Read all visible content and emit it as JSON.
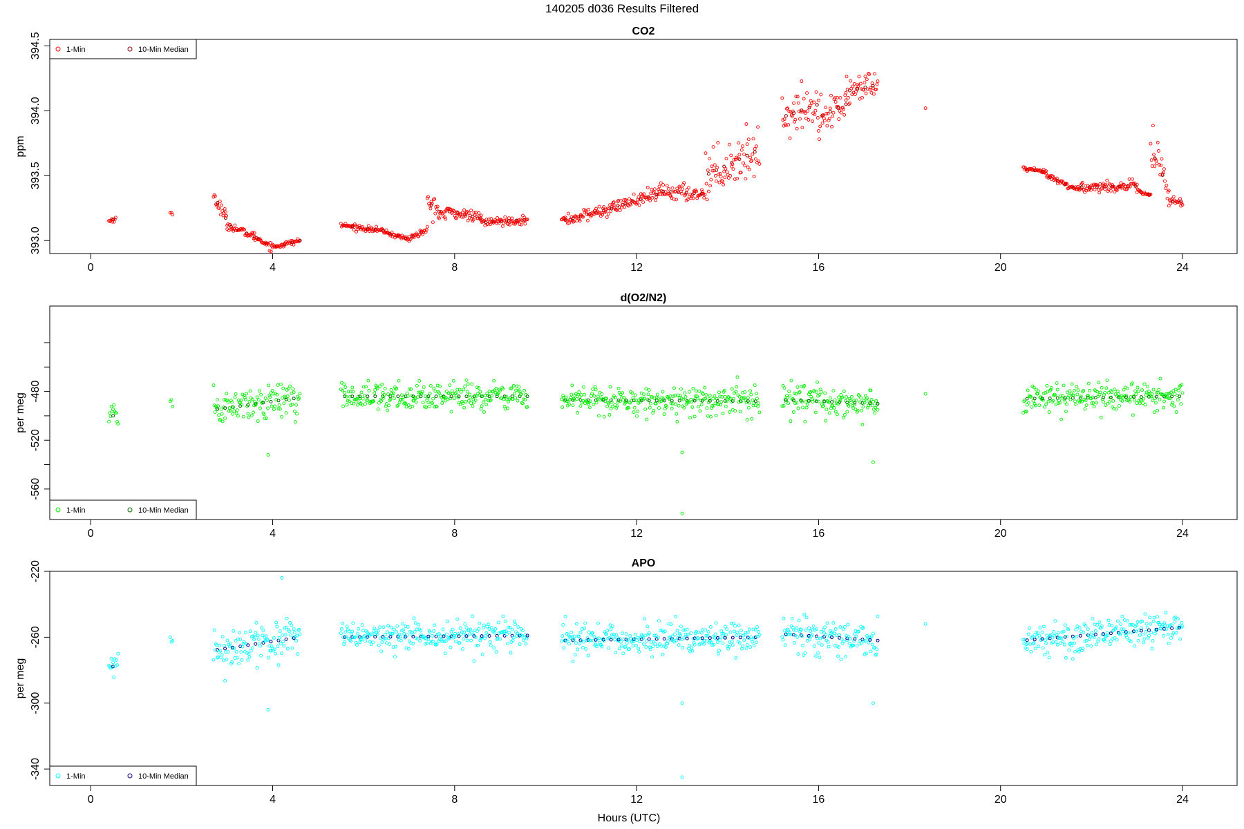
{
  "figure_title": "140205   d036   Results Filtered",
  "xlabel": "Hours (UTC)",
  "chart_data": [
    {
      "type": "scatter",
      "title": "CO2",
      "ylabel": "ppm",
      "xlim": [
        -0.9,
        25.2
      ],
      "ylim": [
        392.9,
        394.55
      ],
      "xticks": [
        0,
        4,
        8,
        12,
        16,
        20,
        24
      ],
      "yticks": [
        393.0,
        393.5,
        394.0,
        394.5
      ],
      "ytick_labels": [
        "393.0",
        "393.5",
        "394.0",
        "394.5"
      ],
      "legend": [
        {
          "label": "1-Min",
          "color": "#ff0000"
        },
        {
          "label": "10-Min Median",
          "color": "#8b0000"
        }
      ],
      "legend_position": "top-left",
      "segments": [
        {
          "x": [
            0.4,
            0.55
          ],
          "y": [
            393.15,
            393.17
          ],
          "noise": 0.02
        },
        {
          "x": [
            1.75,
            1.8
          ],
          "y": [
            393.21,
            393.2
          ],
          "noise": 0.015
        },
        {
          "x": [
            2.7,
            3.0
          ],
          "y": [
            393.35,
            393.15
          ],
          "noise": 0.06
        },
        {
          "x": [
            3.0,
            3.6
          ],
          "y": [
            393.12,
            393.03
          ],
          "noise": 0.03
        },
        {
          "x": [
            3.6,
            4.0
          ],
          "y": [
            393.03,
            392.95
          ],
          "noise": 0.03
        },
        {
          "x": [
            4.0,
            4.6
          ],
          "y": [
            392.95,
            393.0
          ],
          "noise": 0.02
        },
        {
          "x": [
            5.5,
            6.5
          ],
          "y": [
            393.12,
            393.07
          ],
          "noise": 0.02
        },
        {
          "x": [
            6.5,
            7.0
          ],
          "y": [
            393.06,
            393.01
          ],
          "noise": 0.02
        },
        {
          "x": [
            7.0,
            7.4
          ],
          "y": [
            393.02,
            393.08
          ],
          "noise": 0.025
        },
        {
          "x": [
            7.4,
            7.8
          ],
          "y": [
            393.3,
            393.18
          ],
          "noise": 0.08
        },
        {
          "x": [
            7.8,
            8.6
          ],
          "y": [
            393.23,
            393.17
          ],
          "noise": 0.04
        },
        {
          "x": [
            8.6,
            9.6
          ],
          "y": [
            393.14,
            393.16
          ],
          "noise": 0.03
        },
        {
          "x": [
            10.35,
            11.5
          ],
          "y": [
            393.15,
            393.25
          ],
          "noise": 0.05
        },
        {
          "x": [
            11.5,
            12.5
          ],
          "y": [
            393.26,
            393.36
          ],
          "noise": 0.05
        },
        {
          "x": [
            12.5,
            13.5
          ],
          "y": [
            393.38,
            393.36
          ],
          "noise": 0.07
        },
        {
          "x": [
            13.5,
            14.7
          ],
          "y": [
            393.5,
            393.7
          ],
          "noise": 0.18
        },
        {
          "x": [
            15.2,
            16.0
          ],
          "y": [
            393.95,
            394.05
          ],
          "noise": 0.15
        },
        {
          "x": [
            16.0,
            16.6
          ],
          "y": [
            393.95,
            394.05
          ],
          "noise": 0.12
        },
        {
          "x": [
            16.6,
            17.3
          ],
          "y": [
            394.15,
            394.2
          ],
          "noise": 0.12
        }
      ],
      "singles": [
        [
          18.35,
          394.02
        ]
      ],
      "tail_segments": [
        {
          "x": [
            20.5,
            21.0
          ],
          "y": [
            393.55,
            393.53
          ],
          "noise": 0.015
        },
        {
          "x": [
            21.0,
            21.7
          ],
          "y": [
            393.5,
            393.39
          ],
          "noise": 0.025
        },
        {
          "x": [
            21.7,
            23.0
          ],
          "y": [
            393.41,
            393.42
          ],
          "noise": 0.04
        },
        {
          "x": [
            23.0,
            23.3
          ],
          "y": [
            393.38,
            393.35
          ],
          "noise": 0.02
        },
        {
          "x": [
            23.3,
            23.7
          ],
          "y": [
            393.7,
            393.4
          ],
          "noise": 0.18
        },
        {
          "x": [
            23.7,
            24.0
          ],
          "y": [
            393.3,
            393.3
          ],
          "noise": 0.05
        }
      ]
    },
    {
      "type": "scatter",
      "title": "d(O2/N2)",
      "ylabel": "per meg",
      "xlim": [
        -0.9,
        25.2
      ],
      "ylim": [
        -585,
        -410
      ],
      "xticks": [
        0,
        4,
        8,
        12,
        16,
        20,
        24
      ],
      "yticks": [
        -560,
        -520,
        -480
      ],
      "ytick_labels": [
        "-560",
        "-520",
        "-480"
      ],
      "extra_yticks": [
        -540,
        -500,
        -460,
        -440
      ],
      "legend": [
        {
          "label": "1-Min",
          "color": "#00ee00"
        },
        {
          "label": "10-Min Median",
          "color": "#006400"
        }
      ],
      "legend_position": "bottom-left",
      "segments": [
        {
          "x": [
            0.4,
            0.6
          ],
          "y": [
            -500,
            -500
          ],
          "noise": 8
        },
        {
          "x": [
            1.75,
            1.8
          ],
          "y": [
            -488,
            -488
          ],
          "noise": 4
        },
        {
          "x": [
            2.7,
            4.6
          ],
          "y": [
            -495,
            -485
          ],
          "noise": 14
        },
        {
          "x": [
            5.5,
            9.6
          ],
          "y": [
            -484,
            -484
          ],
          "noise": 11
        },
        {
          "x": [
            10.35,
            14.7
          ],
          "y": [
            -487,
            -488
          ],
          "noise": 12
        },
        {
          "x": [
            15.2,
            17.3
          ],
          "y": [
            -487,
            -490
          ],
          "noise": 13
        },
        {
          "x": [
            20.5,
            24.0
          ],
          "y": [
            -486,
            -484
          ],
          "noise": 12
        }
      ],
      "singles": [
        [
          18.35,
          -482
        ],
        [
          13.0,
          -580
        ],
        [
          3.9,
          -532
        ],
        [
          13.0,
          -530
        ],
        [
          17.2,
          -538
        ]
      ]
    },
    {
      "type": "scatter",
      "title": "APO",
      "ylabel": "per meg",
      "xlim": [
        -0.9,
        25.2
      ],
      "ylim": [
        -350,
        -220
      ],
      "xticks": [
        0,
        4,
        8,
        12,
        16,
        20,
        24
      ],
      "yticks": [
        -340,
        -300,
        -260,
        -220
      ],
      "ytick_labels": [
        "-340",
        "-300",
        "-260",
        "-220"
      ],
      "legend": [
        {
          "label": "1-Min",
          "color": "#00ffff"
        },
        {
          "label": "10-Min Median",
          "color": "#00008b"
        }
      ],
      "legend_position": "bottom-left",
      "segments": [
        {
          "x": [
            0.4,
            0.6
          ],
          "y": [
            -280,
            -275
          ],
          "noise": 7
        },
        {
          "x": [
            1.75,
            1.8
          ],
          "y": [
            -263,
            -263
          ],
          "noise": 4
        },
        {
          "x": [
            2.7,
            4.6
          ],
          "y": [
            -268,
            -260
          ],
          "noise": 11
        },
        {
          "x": [
            5.5,
            9.6
          ],
          "y": [
            -260,
            -259
          ],
          "noise": 9
        },
        {
          "x": [
            10.35,
            14.7
          ],
          "y": [
            -262,
            -260
          ],
          "noise": 10
        },
        {
          "x": [
            15.2,
            17.3
          ],
          "y": [
            -258,
            -262
          ],
          "noise": 11
        },
        {
          "x": [
            20.5,
            24.0
          ],
          "y": [
            -262,
            -254
          ],
          "noise": 10
        }
      ],
      "singles": [
        [
          18.35,
          -252
        ],
        [
          13.0,
          -345
        ],
        [
          3.9,
          -304
        ],
        [
          13.0,
          -300
        ],
        [
          17.2,
          -300
        ],
        [
          4.2,
          -224
        ]
      ]
    }
  ]
}
